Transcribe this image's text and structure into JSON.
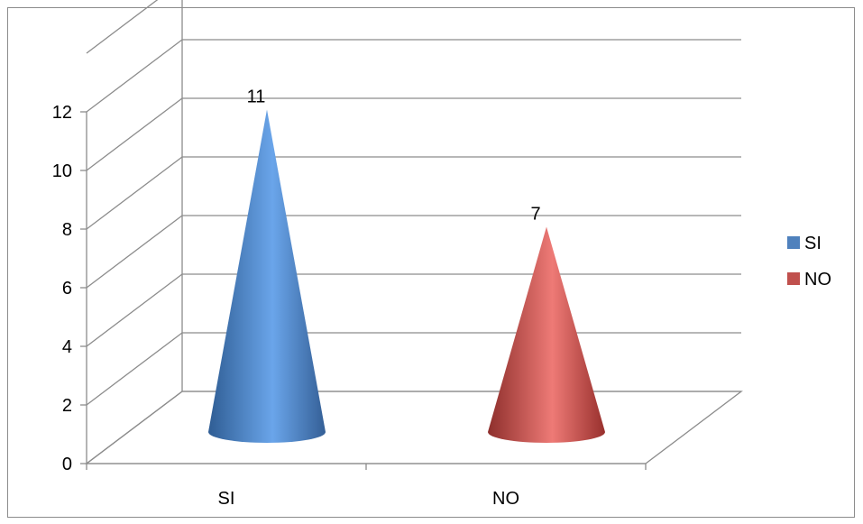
{
  "chart_data": {
    "type": "bar",
    "style": "3d-cone",
    "categories": [
      "SI",
      "NO"
    ],
    "values": [
      11,
      7
    ],
    "data_labels": [
      "11",
      "7"
    ],
    "colors": [
      "#4f81bd",
      "#c0504d"
    ],
    "ylim": [
      0,
      12
    ],
    "yticks": [
      0,
      2,
      4,
      6,
      8,
      10,
      12
    ],
    "grid": true,
    "legend": {
      "placement": "right",
      "entries": [
        {
          "label": "SI",
          "color": "#4f81bd"
        },
        {
          "label": "NO",
          "color": "#c0504d"
        }
      ]
    }
  }
}
